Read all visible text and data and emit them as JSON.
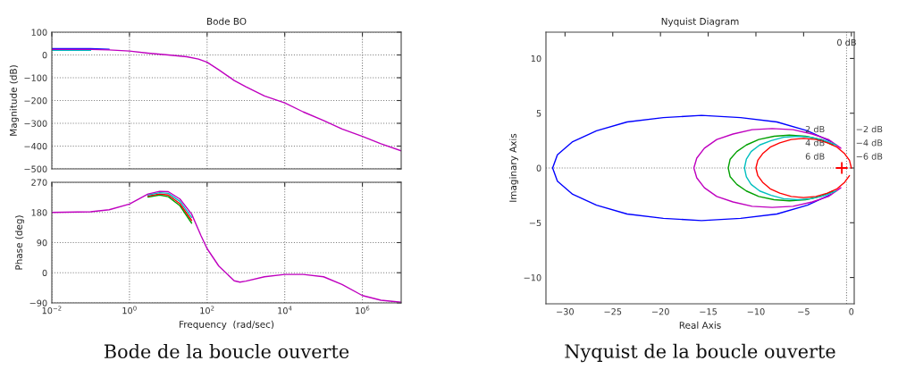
{
  "chart_data": [
    {
      "type": "line",
      "title": "Bode BO",
      "ylabel": "Magnitude (dB)",
      "log": "x",
      "grid": true,
      "tick_labels": "y",
      "xlim": [
        0.01,
        10000000
      ],
      "ylim": [
        -500,
        100
      ],
      "xticks": [
        0.01,
        1,
        100,
        10000,
        1000000
      ],
      "yticks": [
        {
          "value": -500,
          "label": "−500"
        },
        {
          "value": -400,
          "label": "−400"
        },
        {
          "value": -300,
          "label": "−300"
        },
        {
          "value": -200,
          "label": "−200"
        },
        {
          "value": -100,
          "label": "−100"
        },
        0,
        100
      ],
      "annotations": [
        "Bode de la boucle ouverte"
      ],
      "series": [
        {
          "color": "#0000ff",
          "x": [
            0.01,
            0.03,
            0.1,
            0.3
          ],
          "values": [
            28,
            28,
            28,
            25
          ]
        },
        {
          "color": "#00bfbf",
          "x": [
            0.01,
            0.03,
            0.1
          ],
          "values": [
            20,
            20,
            20
          ]
        },
        {
          "color": "#bf00bf",
          "x": [
            0.01,
            0.03,
            0.1,
            0.3,
            1,
            3,
            10,
            30,
            60,
            100,
            200,
            500,
            1000,
            3000,
            10000,
            30000,
            100000,
            300000,
            1000000,
            3000000,
            10000000
          ],
          "values": [
            24,
            24,
            24,
            22,
            17,
            8,
            0,
            -8,
            -18,
            -32,
            -65,
            -112,
            -140,
            -180,
            -210,
            -250,
            -288,
            -325,
            -357,
            -390,
            -421
          ]
        }
      ]
    },
    {
      "type": "line",
      "xlabel": "Frequency  (rad/sec)",
      "ylabel": "Phase (deg)",
      "log": "x",
      "grid": true,
      "xlim": [
        0.01,
        10000000
      ],
      "ylim": [
        -90,
        270
      ],
      "xticks": [
        {
          "value": 0.01,
          "label": "10$^{−2}$"
        },
        {
          "value": 1,
          "label": "10$^{0}$"
        },
        {
          "value": 100,
          "label": "10$^{2}$"
        },
        {
          "value": 10000,
          "label": "10$^{4}$"
        },
        {
          "value": 1000000,
          "label": "10$^{6}$"
        }
      ],
      "yticks": [
        {
          "value": -90,
          "label": "−90"
        },
        0,
        90,
        180,
        270
      ],
      "series": [
        {
          "color": "#00a000",
          "x": [
            3,
            6,
            10,
            20,
            40
          ],
          "values": [
            226,
            232,
            227,
            200,
            148
          ]
        },
        {
          "color": "#ff0000",
          "x": [
            3,
            6,
            10,
            20,
            40
          ],
          "values": [
            229,
            235,
            232,
            206,
            156
          ]
        },
        {
          "color": "#00bfbf",
          "x": [
            3,
            6,
            10,
            20,
            40
          ],
          "values": [
            232,
            239,
            237,
            213,
            165
          ]
        },
        {
          "color": "#bf00bf",
          "x": [
            0.01,
            0.1,
            0.3,
            1,
            3,
            6,
            10,
            20,
            40,
            70,
            100,
            200,
            500,
            700,
            1000,
            3000,
            10000,
            30000,
            100000,
            300000,
            1000000,
            3000000,
            10000000
          ],
          "values": [
            180,
            182,
            188,
            205,
            235,
            243,
            242,
            220,
            175,
            110,
            72,
            20,
            -24,
            -28,
            -25,
            -12,
            -5,
            -5,
            -12,
            -35,
            -68,
            -82,
            -88
          ]
        }
      ]
    },
    {
      "type": "line",
      "title": "Nyquist Diagram",
      "xlabel": "Real Axis",
      "ylabel": "Imaginary Axis",
      "xlim": [
        -32,
        0.3
      ],
      "ylim": [
        -12.4,
        12.4
      ],
      "xticks": [
        {
          "value": -30,
          "label": "−30"
        },
        {
          "value": -25,
          "label": "−25"
        },
        {
          "value": -20,
          "label": "−20"
        },
        {
          "value": -15,
          "label": "−15"
        },
        {
          "value": -10,
          "label": "−10"
        },
        {
          "value": -5,
          "label": "−5"
        },
        0
      ],
      "yticks": [
        {
          "value": -10,
          "label": "−10"
        },
        {
          "value": -5,
          "label": "−5"
        },
        0,
        5,
        10
      ],
      "ref_lines": [
        {
          "axis": "x",
          "value": -0.5,
          "label": "0 dB",
          "color": "#808080",
          "line_style": "dotted"
        },
        {
          "axis": "y",
          "value": 0,
          "color": "#808080",
          "line_style": "dotted"
        }
      ],
      "annotations": [
        "2 dB",
        "−2 dB",
        "4 dB",
        "−4 dB",
        "6 dB",
        "−6 dB",
        "Nyquist de la boucle ouverte"
      ],
      "series": [
        {
          "color": "#0000ff",
          "x": [
            -2.1,
            -4.6,
            -7.8,
            -11.6,
            -15.7,
            -19.7,
            -23.5,
            -26.7,
            -29.2,
            -30.8,
            -31.3,
            -30.8,
            -29.2,
            -26.7,
            -23.5,
            -19.7,
            -15.7,
            -11.6,
            -7.8,
            -4.6,
            -2.1
          ],
          "values": [
            2.4,
            3.4,
            4.2,
            4.6,
            4.8,
            4.6,
            4.2,
            3.4,
            2.4,
            1.2,
            0,
            -1.2,
            -2.4,
            -3.4,
            -4.2,
            -4.6,
            -4.8,
            -4.6,
            -4.2,
            -3.4,
            -2.4
          ]
        },
        {
          "color": "#bf00bf",
          "x": [
            -1.1,
            -2.4,
            -4.1,
            -6.1,
            -8.3,
            -10.4,
            -12.4,
            -14.1,
            -15.4,
            -16.2,
            -16.5,
            -16.2,
            -15.4,
            -14.1,
            -12.4,
            -10.4,
            -8.3,
            -6.1,
            -4.1,
            -2.4,
            -1.1
          ],
          "values": [
            1.8,
            2.6,
            3.1,
            3.5,
            3.6,
            3.5,
            3.1,
            2.6,
            1.8,
            0.9,
            0,
            -0.9,
            -1.8,
            -2.6,
            -3.1,
            -3.5,
            -3.6,
            -3.5,
            -3.1,
            -2.6,
            -1.8
          ]
        },
        {
          "color": "#00a000",
          "x": [
            -1.9,
            -3.2,
            -4.8,
            -6.5,
            -8.1,
            -9.7,
            -11,
            -12,
            -12.7,
            -12.9,
            -12.7,
            -12,
            -11,
            -9.7,
            -8.1,
            -6.5,
            -4.8,
            -3.2,
            -1.9
          ],
          "values": [
            2.1,
            2.6,
            2.9,
            3,
            2.9,
            2.6,
            2.1,
            1.5,
            0.8,
            0,
            -0.8,
            -1.5,
            -2.1,
            -2.6,
            -2.9,
            -3,
            -2.9,
            -2.6,
            -2.1
          ]
        },
        {
          "color": "#00bfbf",
          "x": [
            -1.6,
            -2.8,
            -4.2,
            -5.6,
            -7.1,
            -8.4,
            -9.6,
            -10.5,
            -11,
            -11.2,
            -11,
            -10.5,
            -9.6,
            -8.4,
            -7.1,
            -5.6,
            -4.2,
            -2.8,
            -1.6
          ],
          "values": [
            2.1,
            2.5,
            2.8,
            2.9,
            2.8,
            2.5,
            2.1,
            1.5,
            0.8,
            0,
            -0.8,
            -1.5,
            -2.1,
            -2.5,
            -2.8,
            -2.9,
            -2.8,
            -2.5,
            -2.1
          ]
        },
        {
          "color": "#ff0000",
          "x": [
            0,
            -0.2,
            -0.7,
            -1.5,
            -2.5,
            -3.7,
            -5,
            -6.3,
            -7.5,
            -8.5,
            -9.3,
            -9.8,
            -10,
            -9.8,
            -9.3,
            -8.5,
            -7.5,
            -6.3,
            -5,
            -3.7,
            -2.5,
            -1.5,
            -0.7,
            -0.2
          ],
          "values": [
            0,
            0.7,
            1.3,
            1.9,
            2.3,
            2.6,
            2.7,
            2.6,
            2.3,
            1.9,
            1.3,
            0.7,
            0,
            -0.7,
            -1.3,
            -1.9,
            -2.3,
            -2.6,
            -2.7,
            -2.6,
            -2.3,
            -1.9,
            -1.3,
            -0.7
          ]
        },
        {
          "type": "scatter",
          "marker": "cross",
          "color": "#ff0000",
          "x": [
            -1
          ],
          "values": [
            0
          ]
        }
      ]
    }
  ]
}
